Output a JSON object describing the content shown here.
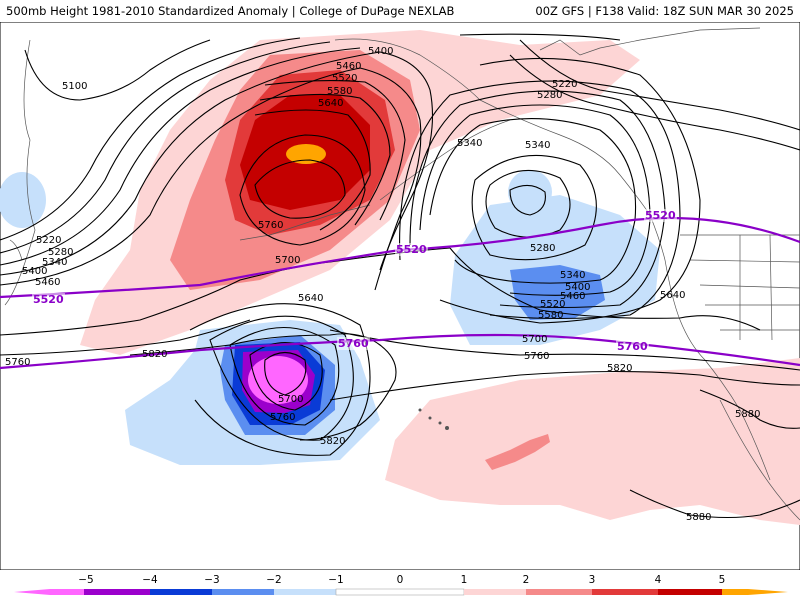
{
  "header": {
    "title_left": "500mb Height 1981-2010 Standardized Anomaly | College of DuPage NEXLAB",
    "title_right": "00Z GFS | F138 Valid: 18Z SUN MAR 30 2025"
  },
  "colors": {
    "anom_neg5": "#ff66ff",
    "anom_neg4": "#9b00cc",
    "anom_neg3": "#0a3bd6",
    "anom_neg2": "#5b8ef0",
    "anom_neg1": "#c6e0fb",
    "anom_pos1": "#fdd5d5",
    "anom_pos2": "#f58a8a",
    "anom_pos3": "#e23a3a",
    "anom_pos4": "#c40000",
    "anom_pos5": "#ffa500",
    "contour": "#000000",
    "highlight_contour": "#8a00c8",
    "coast": "#555555"
  },
  "contour_labels": {
    "c5100": "5100",
    "c5220a": "5220",
    "c5280a": "5280",
    "c5340a": "5340",
    "c5400a": "5400",
    "c5460a": "5460",
    "c5520a": "5520",
    "c5580a": "5580",
    "c5640a": "5640",
    "c5760a": "5760",
    "c5700a": "5700",
    "c5220w": "5220",
    "c5280w": "5280",
    "c5340w": "5340",
    "c5400w": "5400",
    "c5460w": "5460",
    "c5400n": "5400",
    "c5460n": "5460",
    "c5520n": "5520",
    "c5580n": "5580",
    "c5640n": "5640",
    "c5760n": "5760",
    "c5340e": "5340",
    "c5220e": "5220",
    "c5280e": "5280",
    "c5340c": "5340",
    "c5280c": "5280",
    "c5340s": "5340",
    "c5400s": "5400",
    "c5460s": "5460",
    "c5520s": "5520",
    "c5580s": "5580",
    "c5640c": "5640",
    "c5700c": "5700",
    "c5760c": "5760",
    "c5640e": "5640",
    "c5820w": "5820",
    "c5760w": "5760",
    "c5640l": "5640",
    "c5700l": "5700",
    "c5760l": "5760",
    "c5820l": "5820",
    "c5820e": "5820",
    "c5880a": "5880",
    "c5880b": "5880",
    "p5520a": "5520",
    "p5520b": "5520",
    "p5520c": "5520",
    "p5760a": "5760",
    "p5760b": "5760"
  },
  "colorbar": {
    "ticks": [
      "−5",
      "−4",
      "−3",
      "−2",
      "−1",
      "0",
      "1",
      "2",
      "3",
      "4",
      "5"
    ]
  }
}
